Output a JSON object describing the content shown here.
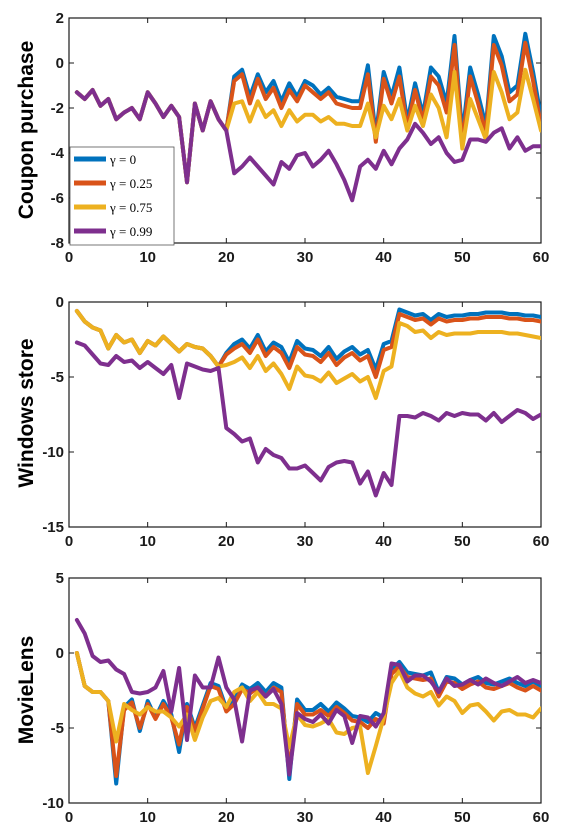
{
  "chart_data": [
    {
      "type": "line",
      "ylabel": "Coupon purchase",
      "xlim": [
        0,
        60
      ],
      "ylim": [
        -8,
        2
      ],
      "xticks": [
        "0",
        "10",
        "20",
        "30",
        "40",
        "50",
        "60"
      ],
      "yticks": [
        "2",
        "0",
        "-2",
        "-4",
        "-6",
        "-8"
      ],
      "legend": {
        "position": "bottom-left",
        "labels": [
          "γ = 0",
          "γ = 0.25",
          "γ = 0.75",
          "γ = 0.99"
        ]
      },
      "x": [
        1,
        2,
        3,
        4,
        5,
        6,
        7,
        8,
        9,
        10,
        11,
        12,
        13,
        14,
        15,
        16,
        17,
        18,
        19,
        20,
        21,
        22,
        23,
        24,
        25,
        26,
        27,
        28,
        29,
        30,
        31,
        32,
        33,
        34,
        35,
        36,
        37,
        38,
        39,
        40,
        41,
        42,
        43,
        44,
        45,
        46,
        47,
        48,
        49,
        50,
        51,
        52,
        53,
        54,
        55,
        56,
        57,
        58,
        59,
        60
      ],
      "series": [
        {
          "name": "γ = 0",
          "color": "#0072BD",
          "values": [
            -1.3,
            -1.6,
            -1.2,
            -1.9,
            -1.6,
            -2.5,
            -2.2,
            -2.0,
            -2.5,
            -1.3,
            -1.8,
            -2.4,
            -1.9,
            -2.4,
            -5.3,
            -1.8,
            -3.0,
            -1.7,
            -2.5,
            -3.0,
            -0.6,
            -0.3,
            -1.5,
            -0.5,
            -1.3,
            -0.8,
            -1.7,
            -0.9,
            -1.5,
            -0.8,
            -1.0,
            -1.4,
            -1.1,
            -1.5,
            -1.6,
            -1.7,
            -1.7,
            -0.1,
            -3.2,
            -0.4,
            -1.5,
            -0.2,
            -2.6,
            -0.9,
            -2.3,
            -0.2,
            -0.6,
            -1.8,
            1.2,
            -3.2,
            -0.2,
            -1.4,
            -2.8,
            1.2,
            0.3,
            -1.3,
            -1.0,
            1.3,
            -0.4,
            -2.4
          ]
        },
        {
          "name": "γ = 0.25",
          "color": "#D95319",
          "values": [
            -1.3,
            -1.6,
            -1.2,
            -1.9,
            -1.6,
            -2.5,
            -2.2,
            -2.0,
            -2.5,
            -1.3,
            -1.8,
            -2.4,
            -1.9,
            -2.4,
            -5.3,
            -1.8,
            -3.0,
            -1.7,
            -2.5,
            -3.0,
            -0.8,
            -0.5,
            -1.8,
            -0.7,
            -1.6,
            -1.1,
            -2.0,
            -1.2,
            -1.7,
            -1.0,
            -1.3,
            -1.6,
            -1.3,
            -1.8,
            -1.9,
            -2.0,
            -2.0,
            -0.5,
            -3.5,
            -0.7,
            -1.8,
            -0.6,
            -2.9,
            -1.2,
            -2.6,
            -0.6,
            -1.0,
            -2.2,
            0.8,
            -3.6,
            -0.6,
            -1.8,
            -3.1,
            0.8,
            -0.1,
            -1.7,
            -1.4,
            0.9,
            -0.8,
            -2.8
          ]
        },
        {
          "name": "γ = 0.75",
          "color": "#EDB120",
          "values": [
            -1.3,
            -1.6,
            -1.2,
            -1.9,
            -1.6,
            -2.5,
            -2.2,
            -2.0,
            -2.5,
            -1.3,
            -1.8,
            -2.4,
            -1.9,
            -2.4,
            -5.3,
            -1.8,
            -3.0,
            -1.7,
            -2.5,
            -3.0,
            -1.8,
            -1.7,
            -2.6,
            -1.7,
            -2.4,
            -2.1,
            -2.8,
            -2.1,
            -2.6,
            -2.3,
            -2.3,
            -2.6,
            -2.4,
            -2.7,
            -2.7,
            -2.8,
            -2.8,
            -1.8,
            -3.3,
            -1.9,
            -2.5,
            -1.6,
            -3.0,
            -1.9,
            -2.8,
            -1.4,
            -2.0,
            -3.3,
            -0.4,
            -3.8,
            -1.6,
            -2.5,
            -3.4,
            -0.4,
            -1.3,
            -2.5,
            -2.2,
            -0.3,
            -1.6,
            -3.0
          ]
        },
        {
          "name": "γ = 0.99",
          "color": "#7E2F8E",
          "values": [
            -1.3,
            -1.6,
            -1.2,
            -1.9,
            -1.6,
            -2.5,
            -2.2,
            -2.0,
            -2.5,
            -1.3,
            -1.8,
            -2.4,
            -1.9,
            -2.4,
            -5.3,
            -1.8,
            -3.0,
            -1.7,
            -2.5,
            -3.0,
            -4.9,
            -4.6,
            -4.2,
            -4.6,
            -5.0,
            -5.4,
            -4.4,
            -4.7,
            -4.1,
            -4.0,
            -4.6,
            -4.3,
            -3.9,
            -4.5,
            -5.2,
            -6.1,
            -4.6,
            -4.3,
            -4.7,
            -3.9,
            -4.5,
            -3.8,
            -3.4,
            -2.7,
            -3.1,
            -3.6,
            -3.3,
            -4.0,
            -4.4,
            -4.3,
            -3.4,
            -3.4,
            -3.5,
            -3.1,
            -2.9,
            -3.8,
            -3.3,
            -3.9,
            -3.7,
            -3.7
          ]
        }
      ]
    },
    {
      "type": "line",
      "ylabel": "Windows store",
      "xlim": [
        0,
        60
      ],
      "ylim": [
        -15,
        0
      ],
      "xticks": [
        "0",
        "10",
        "20",
        "30",
        "40",
        "50",
        "60"
      ],
      "yticks": [
        "0",
        "-5",
        "-10",
        "-15"
      ],
      "x": [
        1,
        2,
        3,
        4,
        5,
        6,
        7,
        8,
        9,
        10,
        11,
        12,
        13,
        14,
        15,
        16,
        17,
        18,
        19,
        20,
        21,
        22,
        23,
        24,
        25,
        26,
        27,
        28,
        29,
        30,
        31,
        32,
        33,
        34,
        35,
        36,
        37,
        38,
        39,
        40,
        41,
        42,
        43,
        44,
        45,
        46,
        47,
        48,
        49,
        50,
        51,
        52,
        53,
        54,
        55,
        56,
        57,
        58,
        59,
        60
      ],
      "series": [
        {
          "name": "γ = 0",
          "color": "#0072BD",
          "values": [
            -0.6,
            -1.3,
            -1.7,
            -1.9,
            -3.1,
            -2.2,
            -2.7,
            -2.5,
            -3.4,
            -2.6,
            -2.9,
            -2.3,
            -2.8,
            -3.3,
            -2.8,
            -3.0,
            -3.1,
            -3.6,
            -4.3,
            -3.4,
            -2.8,
            -2.5,
            -3.1,
            -2.2,
            -3.3,
            -2.7,
            -3.0,
            -4.0,
            -2.6,
            -3.1,
            -3.2,
            -3.6,
            -3.0,
            -3.8,
            -3.3,
            -3.0,
            -3.5,
            -3.2,
            -4.5,
            -2.8,
            -2.6,
            -0.5,
            -0.7,
            -0.9,
            -0.8,
            -1.2,
            -0.8,
            -1.0,
            -0.9,
            -0.9,
            -0.8,
            -0.8,
            -0.7,
            -0.7,
            -0.7,
            -0.8,
            -0.8,
            -0.9,
            -0.9,
            -1.0
          ]
        },
        {
          "name": "γ = 0.25",
          "color": "#D95319",
          "values": [
            -0.6,
            -1.3,
            -1.7,
            -1.9,
            -3.1,
            -2.2,
            -2.7,
            -2.5,
            -3.4,
            -2.6,
            -2.9,
            -2.3,
            -2.8,
            -3.3,
            -2.8,
            -3.0,
            -3.1,
            -3.6,
            -4.3,
            -3.5,
            -3.1,
            -2.8,
            -3.4,
            -2.5,
            -3.6,
            -3.0,
            -3.4,
            -4.4,
            -3.0,
            -3.5,
            -3.6,
            -4.0,
            -3.4,
            -4.2,
            -3.7,
            -3.4,
            -3.9,
            -3.6,
            -5.0,
            -3.2,
            -3.0,
            -0.8,
            -1.0,
            -1.2,
            -1.1,
            -1.5,
            -1.1,
            -1.3,
            -1.2,
            -1.2,
            -1.1,
            -1.1,
            -1.0,
            -1.0,
            -1.0,
            -1.1,
            -1.1,
            -1.2,
            -1.2,
            -1.3
          ]
        },
        {
          "name": "γ = 0.75",
          "color": "#EDB120",
          "values": [
            -0.6,
            -1.3,
            -1.7,
            -1.9,
            -3.1,
            -2.2,
            -2.7,
            -2.5,
            -3.4,
            -2.6,
            -2.9,
            -2.3,
            -2.8,
            -3.3,
            -2.8,
            -3.0,
            -3.1,
            -3.6,
            -4.3,
            -4.2,
            -4.0,
            -3.7,
            -4.4,
            -3.6,
            -4.6,
            -4.1,
            -4.8,
            -5.8,
            -4.3,
            -4.9,
            -5.0,
            -5.3,
            -4.7,
            -5.4,
            -5.1,
            -4.8,
            -5.3,
            -5.0,
            -6.4,
            -4.6,
            -4.3,
            -1.4,
            -1.6,
            -2.0,
            -1.9,
            -2.4,
            -2.0,
            -2.2,
            -2.1,
            -2.1,
            -2.1,
            -2.0,
            -2.0,
            -2.0,
            -2.0,
            -2.1,
            -2.1,
            -2.2,
            -2.3,
            -2.4
          ]
        },
        {
          "name": "γ = 0.99",
          "color": "#7E2F8E",
          "values": [
            -2.7,
            -2.9,
            -3.5,
            -4.1,
            -4.2,
            -3.6,
            -4.0,
            -3.9,
            -4.4,
            -4.0,
            -4.4,
            -4.8,
            -4.2,
            -6.4,
            -4.1,
            -4.3,
            -4.5,
            -4.6,
            -4.4,
            -8.4,
            -8.8,
            -9.3,
            -9.1,
            -10.7,
            -9.8,
            -10.2,
            -10.4,
            -11.1,
            -11.1,
            -10.9,
            -11.4,
            -11.9,
            -11.0,
            -10.7,
            -10.6,
            -10.7,
            -12.1,
            -11.3,
            -12.9,
            -11.4,
            -12.2,
            -7.6,
            -7.6,
            -7.7,
            -7.4,
            -7.6,
            -7.9,
            -7.4,
            -7.6,
            -7.4,
            -7.5,
            -7.5,
            -7.9,
            -7.4,
            -8.0,
            -7.6,
            -7.2,
            -7.4,
            -7.8,
            -7.5
          ]
        }
      ]
    },
    {
      "type": "line",
      "ylabel": "MovieLens",
      "xlim": [
        0,
        60
      ],
      "ylim": [
        -10,
        5
      ],
      "xticks": [
        "0",
        "10",
        "20",
        "30",
        "40",
        "50",
        "60"
      ],
      "yticks": [
        "5",
        "0",
        "-5",
        "-10"
      ],
      "x": [
        1,
        2,
        3,
        4,
        5,
        6,
        7,
        8,
        9,
        10,
        11,
        12,
        13,
        14,
        15,
        16,
        17,
        18,
        19,
        20,
        21,
        22,
        23,
        24,
        25,
        26,
        27,
        28,
        29,
        30,
        31,
        32,
        33,
        34,
        35,
        36,
        37,
        38,
        39,
        40,
        41,
        42,
        43,
        44,
        45,
        46,
        47,
        48,
        49,
        50,
        51,
        52,
        53,
        54,
        55,
        56,
        57,
        58,
        59,
        60
      ],
      "series": [
        {
          "name": "γ = 0",
          "color": "#0072BD",
          "values": [
            0.0,
            -2.2,
            -2.6,
            -2.6,
            -3.2,
            -8.7,
            -3.6,
            -3.1,
            -5.2,
            -3.2,
            -4.3,
            -3.2,
            -4.1,
            -6.6,
            -3.4,
            -5.0,
            -3.5,
            -2.0,
            -2.2,
            -3.7,
            -3.1,
            -2.1,
            -2.4,
            -2.0,
            -2.6,
            -2.0,
            -2.3,
            -8.4,
            -3.1,
            -3.8,
            -3.8,
            -3.4,
            -3.9,
            -3.3,
            -3.7,
            -4.2,
            -4.3,
            -4.6,
            -4.0,
            -4.3,
            -1.1,
            -0.6,
            -1.3,
            -1.4,
            -1.5,
            -1.3,
            -2.6,
            -1.6,
            -1.7,
            -2.1,
            -1.8,
            -1.6,
            -2.0,
            -2.1,
            -1.9,
            -1.7,
            -2.0,
            -2.2,
            -1.9,
            -2.2
          ]
        },
        {
          "name": "γ = 0.25",
          "color": "#D95319",
          "values": [
            0.0,
            -2.2,
            -2.6,
            -2.6,
            -3.2,
            -8.2,
            -3.8,
            -3.3,
            -5.0,
            -3.4,
            -4.4,
            -3.4,
            -4.3,
            -6.1,
            -3.6,
            -5.2,
            -3.7,
            -2.2,
            -2.4,
            -3.9,
            -3.4,
            -2.4,
            -2.7,
            -2.3,
            -2.9,
            -2.3,
            -2.6,
            -7.9,
            -3.4,
            -4.1,
            -4.1,
            -3.8,
            -4.2,
            -3.6,
            -4.0,
            -4.5,
            -4.6,
            -5.0,
            -4.4,
            -4.7,
            -1.4,
            -0.9,
            -1.6,
            -1.7,
            -1.8,
            -1.7,
            -2.9,
            -1.9,
            -2.0,
            -2.4,
            -2.1,
            -1.9,
            -2.3,
            -2.4,
            -2.2,
            -2.0,
            -2.3,
            -2.5,
            -2.2,
            -2.5
          ]
        },
        {
          "name": "γ = 0.75",
          "color": "#EDB120",
          "values": [
            0.0,
            -2.2,
            -2.6,
            -2.6,
            -3.2,
            -5.9,
            -3.4,
            -3.8,
            -4.1,
            -3.6,
            -3.9,
            -3.9,
            -4.3,
            -4.9,
            -4.1,
            -5.8,
            -4.3,
            -3.2,
            -3.0,
            -3.6,
            -2.6,
            -2.3,
            -3.2,
            -2.6,
            -3.4,
            -3.4,
            -3.7,
            -6.3,
            -4.1,
            -4.8,
            -4.9,
            -4.7,
            -4.4,
            -5.3,
            -5.4,
            -5.0,
            -4.9,
            -8.0,
            -6.2,
            -4.3,
            -2.0,
            -1.2,
            -2.3,
            -2.7,
            -2.9,
            -2.6,
            -3.5,
            -2.9,
            -3.2,
            -4.0,
            -3.5,
            -3.4,
            -3.9,
            -4.5,
            -3.9,
            -3.8,
            -4.1,
            -4.1,
            -4.3,
            -3.7
          ]
        },
        {
          "name": "γ = 0.99",
          "color": "#7E2F8E",
          "values": [
            2.2,
            1.3,
            -0.2,
            -0.6,
            -0.5,
            -1.1,
            -1.4,
            -2.6,
            -2.7,
            -2.6,
            -2.3,
            -1.2,
            -3.9,
            -1.0,
            -5.8,
            -1.5,
            -2.3,
            -2.3,
            -0.3,
            -2.3,
            -3.1,
            -5.9,
            -2.5,
            -2.3,
            -2.9,
            -2.4,
            -3.4,
            -8.1,
            -4.0,
            -4.4,
            -4.6,
            -4.1,
            -4.7,
            -3.8,
            -4.2,
            -6.0,
            -4.2,
            -4.3,
            -4.9,
            -4.0,
            -0.7,
            -0.8,
            -1.9,
            -1.5,
            -1.5,
            -1.9,
            -2.6,
            -1.7,
            -2.2,
            -2.1,
            -1.8,
            -2.1,
            -1.7,
            -2.0,
            -2.2,
            -1.9,
            -1.6,
            -2.0,
            -1.8,
            -2.0
          ]
        }
      ]
    }
  ]
}
